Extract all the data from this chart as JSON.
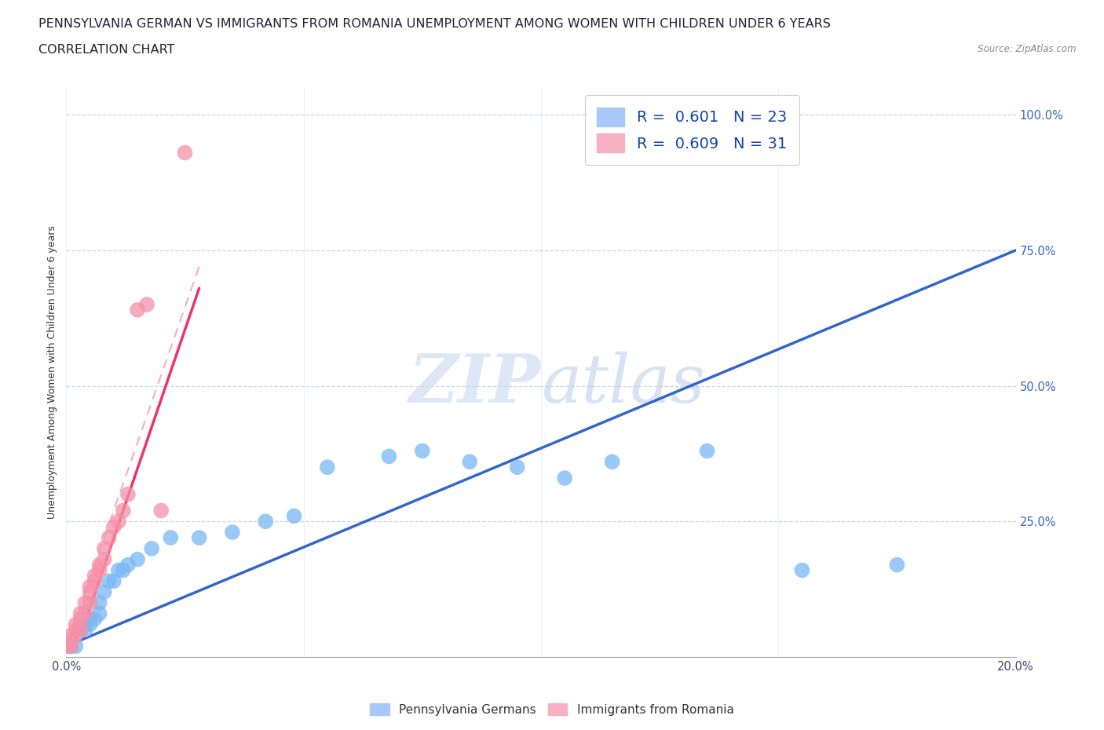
{
  "title_line1": "PENNSYLVANIA GERMAN VS IMMIGRANTS FROM ROMANIA UNEMPLOYMENT AMONG WOMEN WITH CHILDREN UNDER 6 YEARS",
  "title_line2": "CORRELATION CHART",
  "source": "Source: ZipAtlas.com",
  "ylabel_left": "Unemployment Among Women with Children Under 6 years",
  "xlim": [
    0.0,
    0.2
  ],
  "ylim": [
    0.0,
    1.05
  ],
  "blue_scatter_x": [
    0.001,
    0.002,
    0.003,
    0.003,
    0.004,
    0.004,
    0.005,
    0.005,
    0.006,
    0.007,
    0.007,
    0.008,
    0.009,
    0.01,
    0.011,
    0.012,
    0.013,
    0.015,
    0.018,
    0.022,
    0.028,
    0.035,
    0.042,
    0.048,
    0.055,
    0.068,
    0.075,
    0.085,
    0.095,
    0.105,
    0.115,
    0.135,
    0.155,
    0.175
  ],
  "blue_scatter_y": [
    0.02,
    0.02,
    0.05,
    0.05,
    0.05,
    0.06,
    0.06,
    0.07,
    0.07,
    0.08,
    0.1,
    0.12,
    0.14,
    0.14,
    0.16,
    0.16,
    0.17,
    0.18,
    0.2,
    0.22,
    0.22,
    0.23,
    0.25,
    0.26,
    0.35,
    0.37,
    0.38,
    0.36,
    0.35,
    0.33,
    0.36,
    0.38,
    0.16,
    0.17
  ],
  "pink_scatter_x": [
    0.0,
    0.0,
    0.001,
    0.001,
    0.001,
    0.002,
    0.002,
    0.002,
    0.003,
    0.003,
    0.003,
    0.004,
    0.004,
    0.005,
    0.005,
    0.005,
    0.006,
    0.006,
    0.007,
    0.007,
    0.008,
    0.008,
    0.009,
    0.01,
    0.011,
    0.012,
    0.013,
    0.015,
    0.017,
    0.02,
    0.025
  ],
  "pink_scatter_y": [
    0.02,
    0.02,
    0.02,
    0.03,
    0.04,
    0.04,
    0.05,
    0.06,
    0.05,
    0.07,
    0.08,
    0.08,
    0.1,
    0.1,
    0.12,
    0.13,
    0.14,
    0.15,
    0.16,
    0.17,
    0.18,
    0.2,
    0.22,
    0.24,
    0.25,
    0.27,
    0.3,
    0.64,
    0.65,
    0.27,
    0.93
  ],
  "blue_line_x": [
    0.0,
    0.2
  ],
  "blue_line_y": [
    0.02,
    0.75
  ],
  "pink_line_x": [
    0.003,
    0.028
  ],
  "pink_line_y": [
    0.04,
    0.68
  ],
  "blue_color": "#7ab8f5",
  "pink_color": "#f590a8",
  "blue_line_color": "#3366cc",
  "pink_line_color": "#ee3366",
  "watermark_text": "ZIP atlas",
  "background_color": "#ffffff",
  "grid_color": "#c8d4e8",
  "title_fontsize": 11.5,
  "axis_label_fontsize": 9,
  "tick_fontsize": 10.5,
  "legend_fontsize": 14
}
